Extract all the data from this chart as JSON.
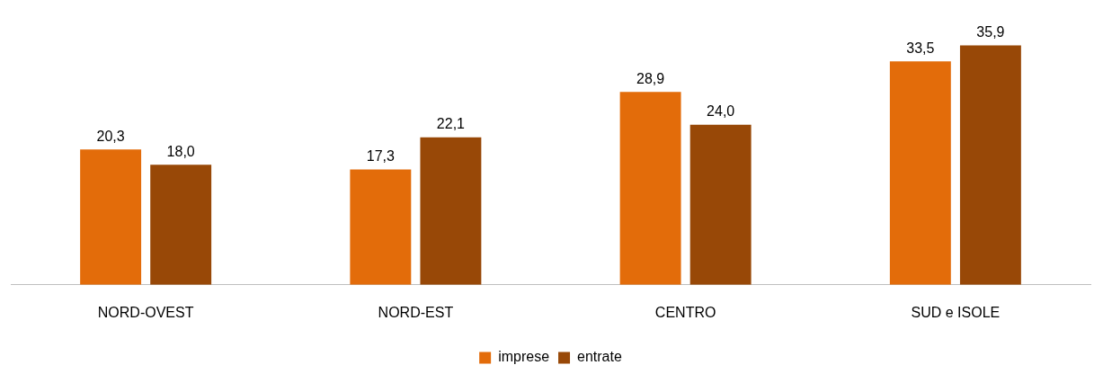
{
  "chart_data": {
    "type": "bar",
    "categories": [
      "NORD-OVEST",
      "NORD-EST",
      "CENTRO",
      "SUD e ISOLE"
    ],
    "series": [
      {
        "name": "imprese",
        "color": "#e36c0a",
        "values": [
          20.3,
          17.3,
          28.9,
          33.5
        ],
        "value_labels": [
          "20,3",
          "17,3",
          "28,9",
          "33,5"
        ]
      },
      {
        "name": "entrate",
        "color": "#984807",
        "values": [
          18.0,
          22.1,
          24.0,
          35.9
        ],
        "value_labels": [
          "18,0",
          "22,1",
          "24,0",
          "35,9"
        ]
      }
    ],
    "legend": "bottom",
    "grid": false
  }
}
